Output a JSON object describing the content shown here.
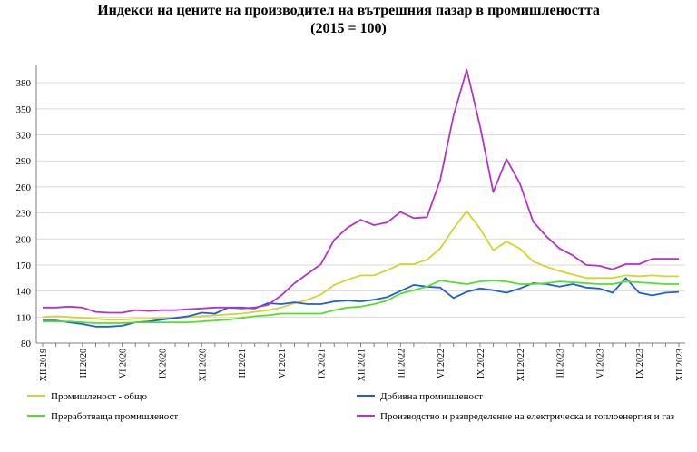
{
  "chart_data": {
    "type": "line",
    "title": "Индекси на цените на производител на вътрешния пазар в промишлеността",
    "subtitle": "(2015 = 100)",
    "ylim": [
      80,
      400
    ],
    "yticks": [
      80,
      110,
      140,
      170,
      200,
      230,
      260,
      290,
      320,
      350,
      380
    ],
    "grid": "horizontal",
    "legend_position": "bottom",
    "x": [
      "XII.2019",
      "I.2020",
      "II.2020",
      "III.2020",
      "IV.2020",
      "V.2020",
      "VI.2020",
      "VII.2020",
      "VIII.2020",
      "IX.2020",
      "X.2020",
      "XI.2020",
      "XII.2020",
      "I.2021",
      "II.2021",
      "III.2021",
      "IV.2021",
      "V.2021",
      "VI.2021",
      "VII.2021",
      "VIII.2021",
      "IX.2021",
      "X.2021",
      "XI.2021",
      "XII.2021",
      "I.2022",
      "II.2022",
      "III.2022",
      "IV.2022",
      "V.2022",
      "VI.2022",
      "VII.2022",
      "VIII.2022",
      "IX.2022",
      "X.2022",
      "XI.2022",
      "XII.2022",
      "I.2023",
      "II.2023",
      "III.2023",
      "IV.2023",
      "V.2023",
      "VI.2023",
      "VII.2023",
      "VIII.2023",
      "IX.2023",
      "X.2023",
      "XI.2023",
      "XII.2023"
    ],
    "xtick_labels": [
      "XII.2019",
      "III.2020",
      "VI.2020",
      "IX.2020",
      "XII.2020",
      "III.2021",
      "VI.2021",
      "IX.2021",
      "XII.2021",
      "III.2022",
      "VI.2022",
      "IX.2022",
      "XII.2022",
      "III.2023",
      "VI.2023",
      "IX.2023",
      "XII.2023"
    ],
    "series": [
      {
        "name": "Промишленост - общо",
        "color": "#d4d42a",
        "values": [
          110,
          111,
          110,
          109,
          108,
          107,
          107,
          108,
          108,
          109,
          109,
          110,
          111,
          112,
          113,
          114,
          116,
          118,
          121,
          126,
          130,
          136,
          147,
          153,
          158,
          158,
          164,
          171,
          171,
          176,
          189,
          212,
          232,
          212,
          187,
          197,
          189,
          174,
          168,
          163,
          159,
          155,
          155,
          155,
          158,
          157,
          158,
          157,
          157
        ]
      },
      {
        "name": "Добивна промишленост",
        "color": "#1f5fd6",
        "values": [
          106,
          106,
          104,
          102,
          99,
          99,
          100,
          104,
          105,
          107,
          109,
          111,
          115,
          114,
          121,
          121,
          120,
          126,
          125,
          127,
          125,
          125,
          128,
          129,
          128,
          130,
          133,
          140,
          147,
          145,
          144,
          132,
          139,
          143,
          141,
          138,
          143,
          149,
          148,
          145,
          148,
          144,
          143,
          138,
          155,
          138,
          135,
          138,
          139
        ]
      },
      {
        "name": "Преработваща промишленост",
        "color": "#52e02c",
        "values": [
          105,
          105,
          105,
          104,
          103,
          103,
          103,
          104,
          104,
          104,
          104,
          104,
          105,
          106,
          107,
          109,
          111,
          112,
          114,
          114,
          114,
          114,
          118,
          121,
          122,
          125,
          129,
          137,
          141,
          145,
          152,
          150,
          148,
          151,
          152,
          151,
          148,
          148,
          149,
          151,
          150,
          149,
          148,
          148,
          151,
          150,
          149,
          148,
          148
        ]
      },
      {
        "name": "Производство и разпределение на електрическа и топлоенергия и газ",
        "color": "#b533c8",
        "values": [
          121,
          121,
          122,
          121,
          116,
          115,
          115,
          118,
          117,
          118,
          118,
          119,
          120,
          121,
          121,
          120,
          121,
          124,
          135,
          149,
          160,
          171,
          199,
          213,
          222,
          216,
          219,
          231,
          224,
          225,
          268,
          342,
          395,
          330,
          254,
          292,
          264,
          220,
          203,
          189,
          181,
          170,
          169,
          165,
          171,
          171,
          177,
          177,
          177
        ]
      }
    ]
  }
}
